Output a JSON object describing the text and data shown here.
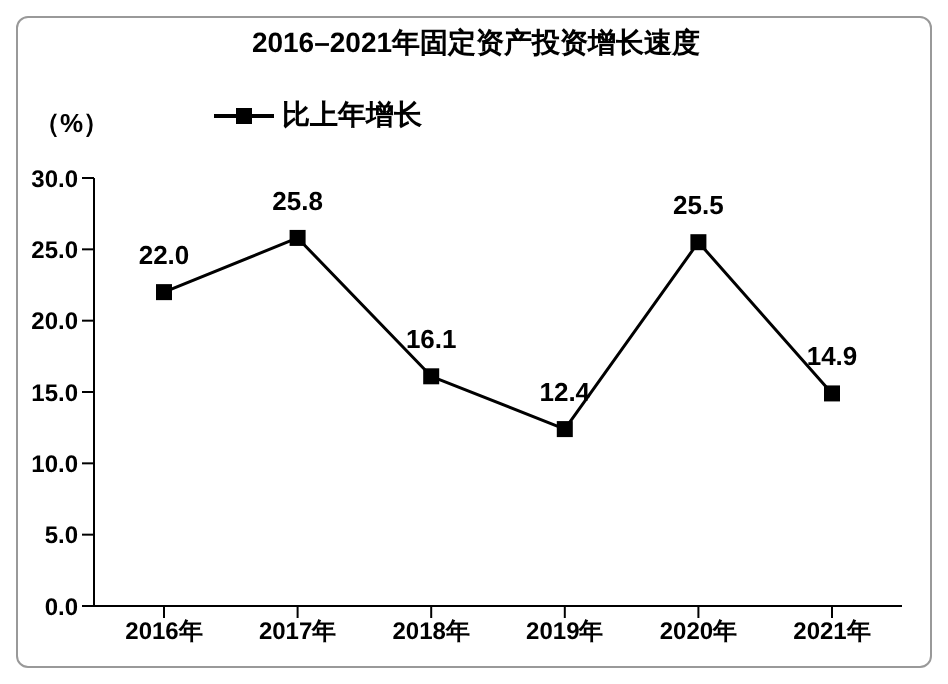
{
  "chart_data": {
    "type": "line",
    "title": "2016–2021年固定资产投资增长速度",
    "ylabel": "（%）",
    "categories": [
      "2016年",
      "2017年",
      "2018年",
      "2019年",
      "2020年",
      "2021年"
    ],
    "series": [
      {
        "name": "比上年增长",
        "color": "#000000",
        "values": [
          22.0,
          25.8,
          16.1,
          12.4,
          25.5,
          14.9
        ],
        "value_labels": [
          "22.0",
          "25.8",
          "16.1",
          "12.4",
          "25.5",
          "14.9"
        ]
      }
    ],
    "ylim": [
      0,
      30
    ],
    "yticks": [
      {
        "value": 0,
        "label": "0.0"
      },
      {
        "value": 5,
        "label": "5.0"
      },
      {
        "value": 10,
        "label": "10.0"
      },
      {
        "value": 15,
        "label": "15.0"
      },
      {
        "value": 20,
        "label": "20.0"
      },
      {
        "value": 25,
        "label": "25.0"
      },
      {
        "value": 30,
        "label": "30.0"
      }
    ],
    "grid": false,
    "legend": "top left",
    "marker": "square",
    "line_style": "solid"
  }
}
